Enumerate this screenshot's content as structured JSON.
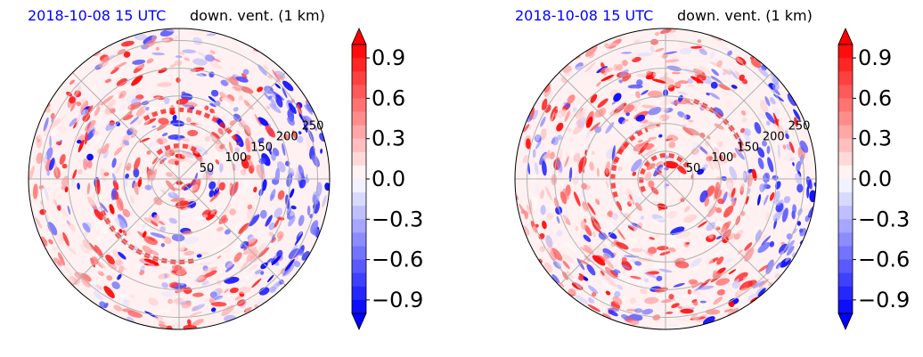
{
  "chart_data": [
    {
      "type": "heatmap",
      "projection": "polar",
      "title_left": "2018-10-08 15 UTC",
      "title_right": "down. vent. (1 km)",
      "radial_ticks": [
        "50",
        "100",
        "150",
        "200",
        "250"
      ],
      "radial_values": [
        50,
        100,
        150,
        200,
        250
      ],
      "theta_gridlines_deg": [
        0,
        45,
        90,
        135,
        180,
        225,
        270,
        315
      ],
      "grid": true,
      "colormap": "bwr",
      "colorbar": {
        "range": [
          -1.0,
          1.0
        ],
        "extend": "both",
        "ticks": [
          "−0.9",
          "−0.6",
          "−0.3",
          "0.0",
          "0.3",
          "0.6",
          "0.9"
        ],
        "tick_values": [
          -0.9,
          -0.6,
          -0.3,
          0.0,
          0.3,
          0.6,
          0.9
        ]
      }
    },
    {
      "type": "heatmap",
      "projection": "polar",
      "title_left": "2018-10-08 15 UTC",
      "title_right": "down. vent. (1 km)",
      "radial_ticks": [
        "50",
        "100",
        "150",
        "200",
        "250"
      ],
      "radial_values": [
        50,
        100,
        150,
        200,
        250
      ],
      "theta_gridlines_deg": [
        0,
        45,
        90,
        135,
        180,
        225,
        270,
        315
      ],
      "grid": true,
      "colormap": "bwr",
      "colorbar": {
        "range": [
          -1.0,
          1.0
        ],
        "extend": "both",
        "ticks": [
          "−0.9",
          "−0.6",
          "−0.3",
          "0.0",
          "0.3",
          "0.6",
          "0.9"
        ],
        "tick_values": [
          -0.9,
          -0.6,
          -0.3,
          0.0,
          0.3,
          0.6,
          0.9
        ]
      }
    }
  ],
  "colors": {
    "title_left": "#0000ff",
    "title_right": "#000000",
    "positive": "#ff0000",
    "negative": "#0000ff",
    "zero": "#ffffff",
    "grid": "#b0b0b0",
    "background_tint": "#fff1f1"
  }
}
